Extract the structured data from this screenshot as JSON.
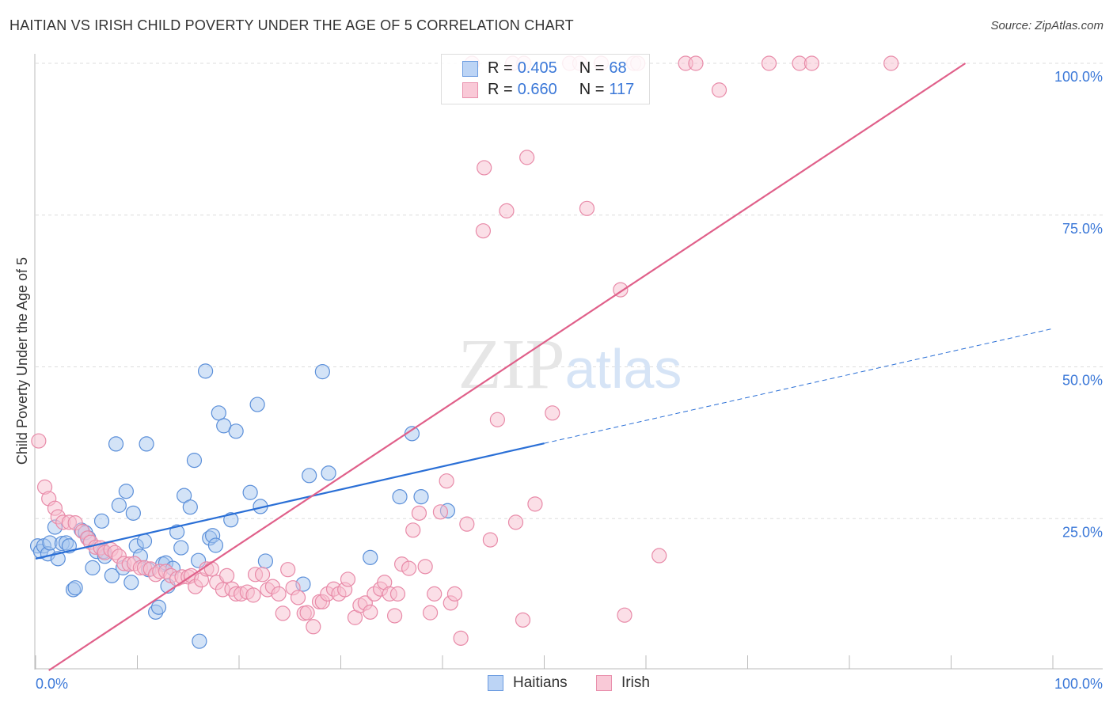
{
  "title": "HAITIAN VS IRISH CHILD POVERTY UNDER THE AGE OF 5 CORRELATION CHART",
  "source": "Source: ZipAtlas.com",
  "watermark": "ZIPatlas",
  "chart_data": {
    "type": "scatter",
    "ylabel": "Child Poverty Under the Age of 5",
    "xlim": [
      0,
      100
    ],
    "ylim": [
      0,
      100
    ],
    "x_tick_labels": [
      "0.0%",
      "100.0%"
    ],
    "y_tick_labels": [
      {
        "v": 100,
        "label": "100.0%"
      },
      {
        "v": 75,
        "label": "75.0%"
      },
      {
        "v": 50,
        "label": "50.0%"
      },
      {
        "v": 25,
        "label": "25.0%"
      }
    ],
    "legend_position": "top-center",
    "series": [
      {
        "name": "Haitians",
        "color": "#5b8fd9",
        "fill": "#a8c8f0",
        "line_color": "#2a6fd6",
        "R": "0.405",
        "N": "68",
        "trend": {
          "x0": 0,
          "y0": 18.4,
          "x1": 50,
          "y1": 37.4,
          "dash_x1": 100,
          "dash_y1": 56.3
        },
        "points": [
          [
            0.2,
            20.5
          ],
          [
            0.5,
            19.6
          ],
          [
            0.8,
            20.5
          ],
          [
            1.2,
            19.2
          ],
          [
            1.4,
            21.0
          ],
          [
            1.9,
            23.6
          ],
          [
            2.2,
            18.4
          ],
          [
            2.6,
            20.9
          ],
          [
            3.0,
            21.0
          ],
          [
            3.3,
            20.5
          ],
          [
            3.7,
            13.3
          ],
          [
            3.9,
            13.6
          ],
          [
            4.5,
            23.1
          ],
          [
            4.9,
            22.7
          ],
          [
            5.2,
            21.8
          ],
          [
            5.6,
            16.9
          ],
          [
            6.0,
            19.6
          ],
          [
            6.5,
            24.6
          ],
          [
            6.7,
            19.6
          ],
          [
            6.8,
            18.8
          ],
          [
            7.5,
            15.6
          ],
          [
            7.9,
            37.3
          ],
          [
            8.2,
            27.2
          ],
          [
            8.6,
            16.9
          ],
          [
            8.9,
            29.5
          ],
          [
            9.4,
            14.5
          ],
          [
            9.6,
            25.9
          ],
          [
            9.9,
            20.5
          ],
          [
            10.3,
            18.8
          ],
          [
            10.7,
            21.3
          ],
          [
            10.9,
            37.3
          ],
          [
            11.1,
            16.6
          ],
          [
            11.8,
            9.6
          ],
          [
            12.1,
            10.4
          ],
          [
            12.5,
            17.5
          ],
          [
            12.8,
            17.7
          ],
          [
            13.0,
            13.9
          ],
          [
            13.5,
            16.8
          ],
          [
            13.9,
            22.8
          ],
          [
            14.3,
            20.2
          ],
          [
            14.6,
            28.8
          ],
          [
            15.2,
            26.9
          ],
          [
            15.6,
            34.6
          ],
          [
            16.0,
            18.1
          ],
          [
            16.1,
            4.8
          ],
          [
            16.7,
            49.3
          ],
          [
            17.1,
            21.8
          ],
          [
            17.4,
            22.2
          ],
          [
            17.7,
            20.6
          ],
          [
            18.0,
            42.4
          ],
          [
            18.5,
            40.3
          ],
          [
            19.2,
            24.8
          ],
          [
            19.7,
            39.4
          ],
          [
            21.1,
            29.3
          ],
          [
            21.8,
            43.8
          ],
          [
            22.1,
            27.0
          ],
          [
            22.6,
            18.0
          ],
          [
            26.3,
            14.2
          ],
          [
            26.9,
            32.1
          ],
          [
            28.2,
            49.2
          ],
          [
            28.8,
            32.5
          ],
          [
            32.9,
            18.6
          ],
          [
            35.8,
            28.6
          ],
          [
            37.0,
            39.0
          ],
          [
            37.9,
            28.6
          ],
          [
            40.5,
            26.3
          ]
        ]
      },
      {
        "name": "Irish",
        "color": "#e88aa8",
        "fill": "#f7c0d0",
        "line_color": "#e0608a",
        "R": "0.660",
        "N": "117",
        "trend": {
          "x0": 1.3,
          "y0": 0,
          "x1": 91.4,
          "y1": 100
        },
        "points": [
          [
            0.3,
            37.8
          ],
          [
            0.9,
            30.2
          ],
          [
            1.3,
            28.3
          ],
          [
            1.9,
            26.7
          ],
          [
            2.2,
            25.3
          ],
          [
            2.7,
            24.4
          ],
          [
            3.3,
            24.4
          ],
          [
            3.9,
            24.3
          ],
          [
            4.6,
            22.9
          ],
          [
            5.1,
            21.8
          ],
          [
            5.4,
            21.1
          ],
          [
            5.9,
            20.3
          ],
          [
            6.4,
            20.2
          ],
          [
            6.8,
            19.4
          ],
          [
            7.4,
            19.9
          ],
          [
            7.8,
            19.4
          ],
          [
            8.2,
            18.8
          ],
          [
            8.7,
            17.6
          ],
          [
            9.2,
            17.5
          ],
          [
            9.7,
            17.6
          ],
          [
            10.3,
            16.9
          ],
          [
            10.7,
            16.9
          ],
          [
            11.3,
            16.7
          ],
          [
            11.8,
            15.8
          ],
          [
            12.2,
            16.3
          ],
          [
            12.8,
            16.3
          ],
          [
            13.3,
            15.6
          ],
          [
            13.9,
            15.1
          ],
          [
            14.4,
            15.4
          ],
          [
            15.0,
            15.4
          ],
          [
            15.3,
            15.6
          ],
          [
            15.7,
            13.8
          ],
          [
            16.3,
            14.9
          ],
          [
            16.8,
            16.7
          ],
          [
            17.3,
            16.7
          ],
          [
            17.8,
            14.5
          ],
          [
            18.4,
            13.3
          ],
          [
            18.8,
            15.6
          ],
          [
            19.3,
            13.4
          ],
          [
            19.7,
            12.6
          ],
          [
            20.2,
            12.6
          ],
          [
            20.8,
            12.9
          ],
          [
            21.4,
            12.4
          ],
          [
            21.6,
            15.8
          ],
          [
            22.3,
            15.8
          ],
          [
            22.8,
            13.3
          ],
          [
            23.3,
            13.8
          ],
          [
            23.9,
            12.6
          ],
          [
            24.3,
            9.4
          ],
          [
            24.8,
            16.6
          ],
          [
            25.3,
            13.6
          ],
          [
            25.8,
            12.0
          ],
          [
            26.4,
            9.4
          ],
          [
            26.7,
            9.5
          ],
          [
            27.3,
            7.2
          ],
          [
            27.9,
            11.3
          ],
          [
            28.2,
            11.3
          ],
          [
            28.7,
            12.6
          ],
          [
            29.3,
            13.4
          ],
          [
            29.8,
            12.6
          ],
          [
            30.4,
            13.3
          ],
          [
            30.7,
            15.0
          ],
          [
            31.4,
            8.7
          ],
          [
            31.9,
            10.7
          ],
          [
            32.4,
            11.1
          ],
          [
            32.9,
            9.6
          ],
          [
            33.3,
            12.6
          ],
          [
            33.9,
            13.4
          ],
          [
            34.3,
            14.5
          ],
          [
            34.8,
            12.6
          ],
          [
            35.3,
            9.0
          ],
          [
            35.6,
            12.6
          ],
          [
            36.0,
            17.5
          ],
          [
            36.7,
            16.8
          ],
          [
            37.1,
            23.1
          ],
          [
            37.7,
            25.9
          ],
          [
            38.3,
            17.1
          ],
          [
            38.8,
            9.5
          ],
          [
            39.2,
            12.6
          ],
          [
            39.8,
            26.1
          ],
          [
            40.4,
            31.2
          ],
          [
            40.8,
            11.1
          ],
          [
            41.2,
            12.6
          ],
          [
            41.8,
            5.3
          ],
          [
            42.4,
            24.1
          ],
          [
            44.7,
            21.5
          ],
          [
            44.1,
            82.8
          ],
          [
            44.0,
            72.4
          ],
          [
            45.4,
            41.3
          ],
          [
            46.3,
            75.7
          ],
          [
            47.2,
            24.4
          ],
          [
            47.9,
            8.3
          ],
          [
            48.3,
            84.5
          ],
          [
            49.1,
            27.4
          ],
          [
            50.8,
            42.4
          ],
          [
            54.2,
            76.1
          ],
          [
            57.5,
            62.7
          ],
          [
            57.9,
            9.1
          ],
          [
            61.3,
            18.9
          ],
          [
            67.2,
            95.6
          ],
          [
            42.9,
            100
          ],
          [
            46.9,
            100
          ],
          [
            48.0,
            100
          ],
          [
            52.5,
            100
          ],
          [
            53.5,
            100
          ],
          [
            55.6,
            100
          ],
          [
            58.8,
            100
          ],
          [
            59.2,
            100
          ],
          [
            63.9,
            100
          ],
          [
            64.9,
            100
          ],
          [
            72.1,
            100
          ],
          [
            75.1,
            100
          ],
          [
            76.3,
            100
          ],
          [
            84.1,
            100
          ]
        ]
      }
    ]
  },
  "legend": {
    "r_label": "R =",
    "n_label": "N ="
  }
}
